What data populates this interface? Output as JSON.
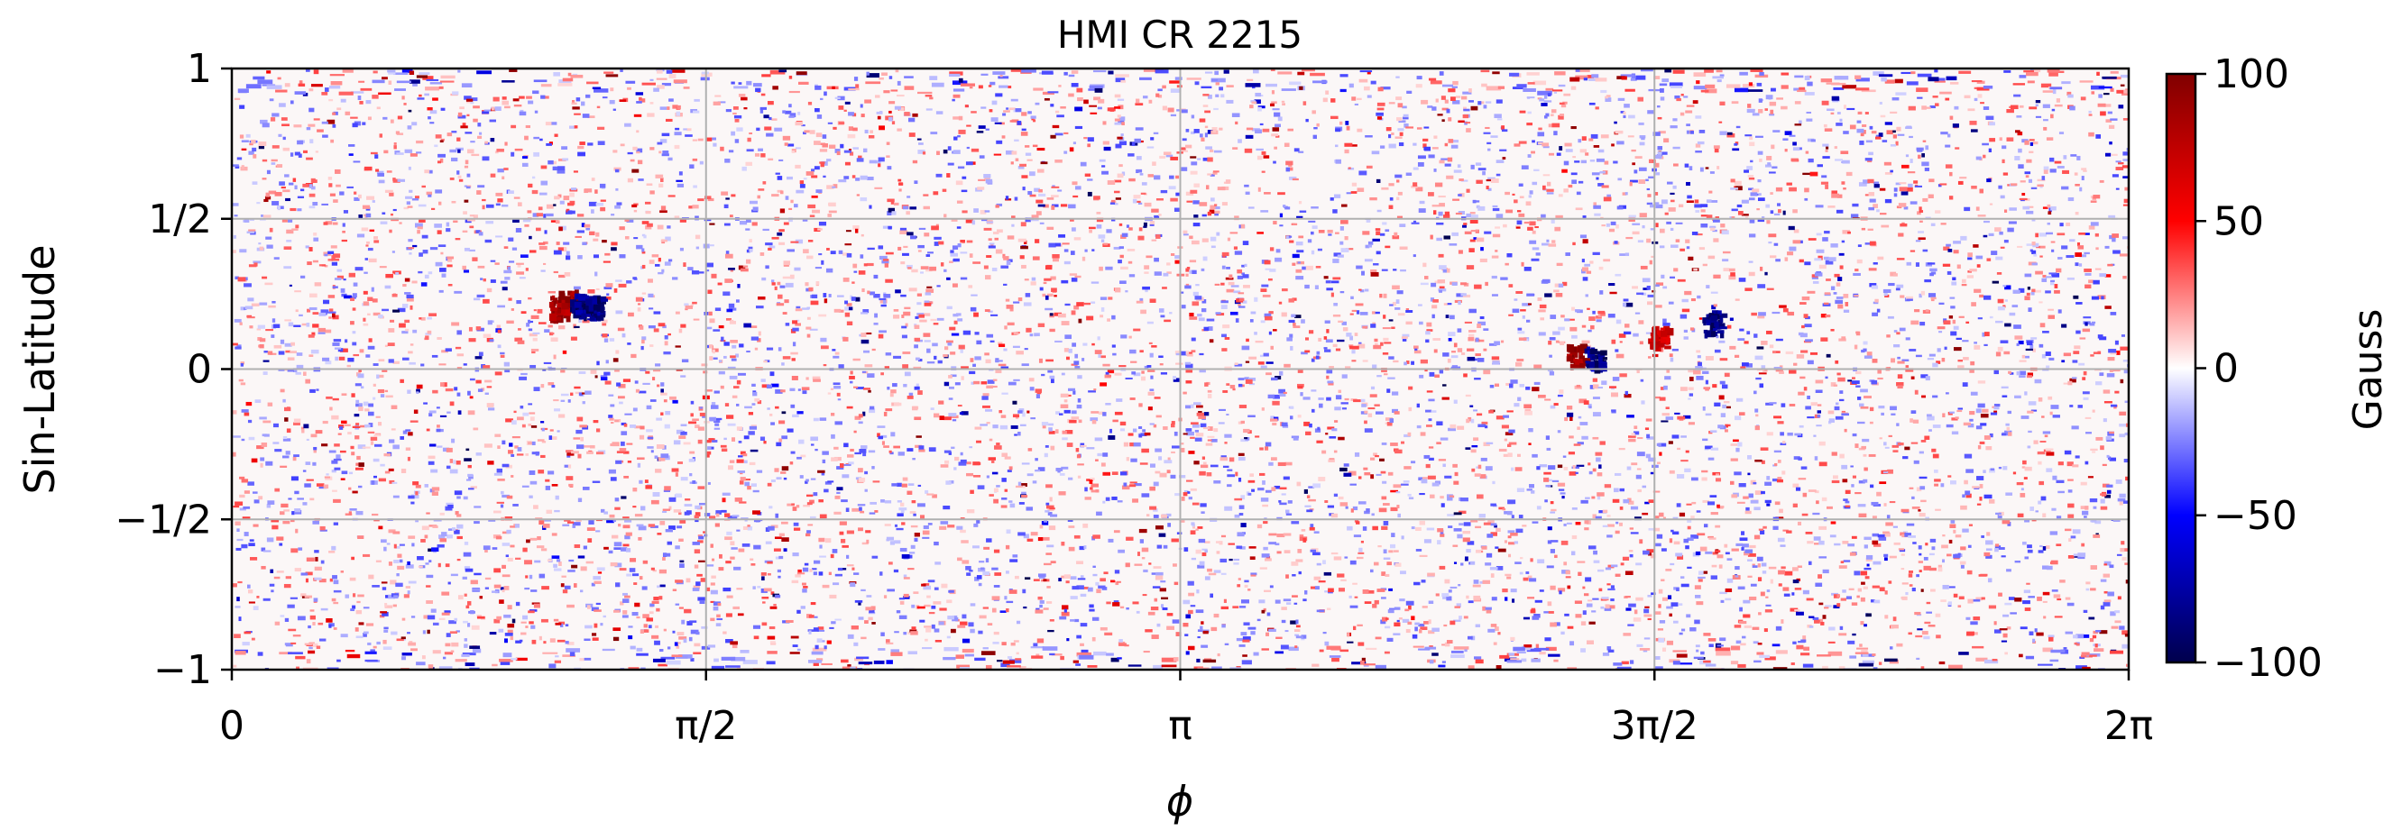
{
  "chart_data": {
    "type": "heatmap",
    "title": "HMI CR 2215",
    "xlabel": "ϕ",
    "ylabel": "Sin-Latitude",
    "xlim": [
      0,
      6.283185
    ],
    "ylim": [
      -1,
      1
    ],
    "grid": true,
    "x_ticks": [
      {
        "value": 0,
        "label": "0"
      },
      {
        "value": 1.570796,
        "label": "π/2"
      },
      {
        "value": 3.141593,
        "label": "π"
      },
      {
        "value": 4.712389,
        "label": "3π/2"
      },
      {
        "value": 6.283185,
        "label": "2π"
      }
    ],
    "y_ticks": [
      {
        "value": 1,
        "label": "1"
      },
      {
        "value": 0.5,
        "label": "1/2"
      },
      {
        "value": 0,
        "label": "0"
      },
      {
        "value": -0.5,
        "label": "−1/2"
      },
      {
        "value": -1,
        "label": "−1"
      }
    ],
    "colorbar": {
      "label": "Gauss",
      "range": [
        -100,
        100
      ],
      "colormap": "seismic",
      "ticks": [
        {
          "value": 100,
          "label": "100"
        },
        {
          "value": 50,
          "label": "50"
        },
        {
          "value": 0,
          "label": "0"
        },
        {
          "value": -50,
          "label": "−50"
        },
        {
          "value": -100,
          "label": "−100"
        }
      ],
      "colors": [
        "#00004c",
        "#0000ff",
        "#ffffff",
        "#ff0000",
        "#800000"
      ]
    },
    "features": [
      {
        "phi": 1.08,
        "sinlat": 0.21,
        "field": 100
      },
      {
        "phi": 1.11,
        "sinlat": 0.23,
        "field": 100
      },
      {
        "phi": 1.15,
        "sinlat": 0.22,
        "field": -100
      },
      {
        "phi": 1.2,
        "sinlat": 0.21,
        "field": -100
      },
      {
        "phi": 4.45,
        "sinlat": 0.05,
        "field": 100
      },
      {
        "phi": 4.51,
        "sinlat": 0.04,
        "field": -100
      },
      {
        "phi": 4.72,
        "sinlat": 0.11,
        "field": 80
      },
      {
        "phi": 4.9,
        "sinlat": 0.16,
        "field": -100
      }
    ]
  }
}
